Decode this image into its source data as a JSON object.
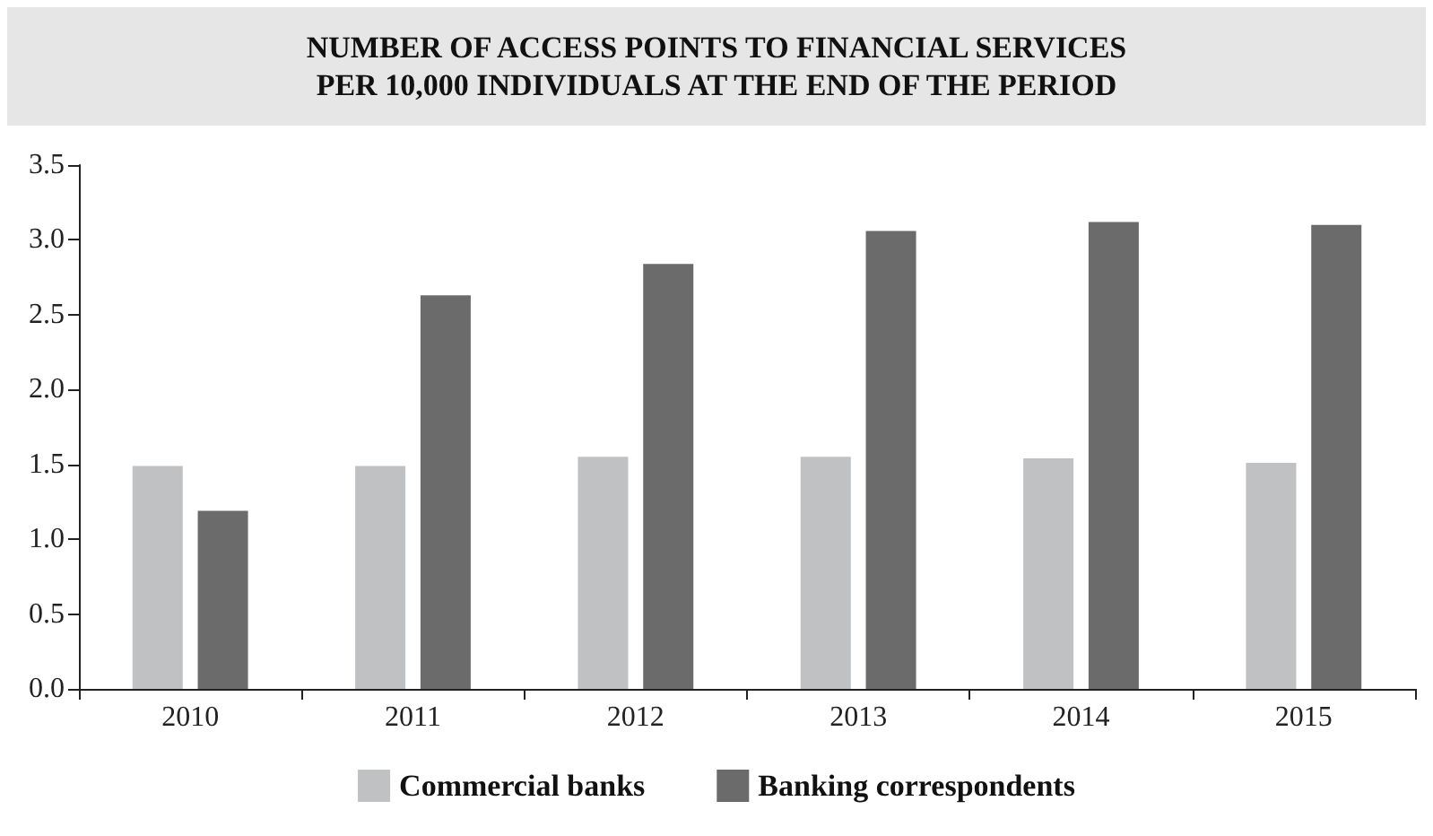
{
  "chart_data": {
    "type": "bar",
    "title": "NUMBER OF ACCESS POINTS TO FINANCIAL SERVICES\nPER 10,000 INDIVIDUALS AT THE END OF THE PERIOD",
    "categories": [
      "2010",
      "2011",
      "2012",
      "2013",
      "2014",
      "2015"
    ],
    "series": [
      {
        "name": "Commercial banks",
        "color": "#c0c1c2",
        "values": [
          1.49,
          1.49,
          1.55,
          1.55,
          1.54,
          1.51
        ]
      },
      {
        "name": "Banking correspondents",
        "color": "#6a6b6a",
        "values": [
          1.19,
          2.63,
          2.84,
          3.06,
          3.12,
          3.1
        ]
      }
    ],
    "ylim": [
      0,
      3.5
    ],
    "yticks": [
      {
        "value": 0,
        "label": "0.0"
      },
      0.5,
      {
        "value": 1,
        "label": "1.0"
      },
      1.5,
      {
        "value": 2,
        "label": "2.0"
      },
      2.5,
      {
        "value": 3,
        "label": "3.0"
      },
      3.5
    ],
    "grid": false,
    "legend": "bottom"
  }
}
